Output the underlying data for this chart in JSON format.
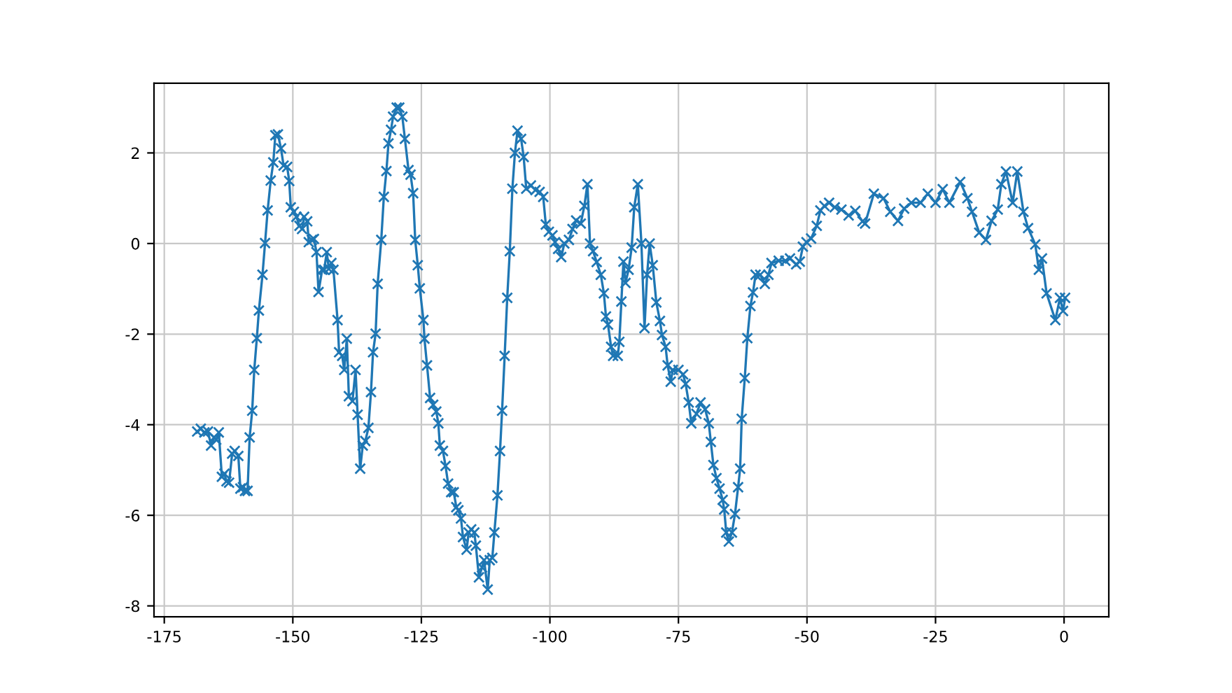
{
  "chart_data": {
    "type": "line",
    "marker": "cross",
    "line_style": "solid",
    "grid": true,
    "xlim": [
      -177,
      8.7
    ],
    "ylim": [
      -8.24,
      3.54
    ],
    "xticks": [
      -175,
      -150,
      -125,
      -100,
      -75,
      -50,
      -25,
      0
    ],
    "yticks": [
      -8,
      -6,
      -4,
      -2,
      0,
      2
    ],
    "series": [
      {
        "color": "#1f77b4",
        "x": [
          -168.6,
          -167.9,
          -167.2,
          -166.5,
          -165.9,
          -165.3,
          -164.9,
          -164.4,
          -163.8,
          -163.3,
          -162.9,
          -162.4,
          -161.8,
          -161.3,
          -160.6,
          -160.2,
          -159.7,
          -159.3,
          -158.8,
          -158.4,
          -157.9,
          -157.5,
          -157.0,
          -156.6,
          -155.9,
          -155.4,
          -154.9,
          -154.3,
          -153.8,
          -153.4,
          -152.9,
          -152.3,
          -151.8,
          -151.1,
          -150.7,
          -150.4,
          -149.8,
          -149.3,
          -148.7,
          -148.2,
          -147.8,
          -147.2,
          -146.9,
          -146.3,
          -145.9,
          -145.4,
          -145.0,
          -144.3,
          -143.9,
          -143.4,
          -143.0,
          -142.5,
          -142.1,
          -141.3,
          -141.0,
          -140.4,
          -140.0,
          -139.5,
          -139.1,
          -138.4,
          -137.8,
          -137.4,
          -136.9,
          -136.4,
          -135.9,
          -135.3,
          -134.8,
          -134.4,
          -133.9,
          -133.5,
          -132.8,
          -132.3,
          -131.8,
          -131.4,
          -130.9,
          -130.5,
          -129.8,
          -129.3,
          -128.7,
          -128.2,
          -127.5,
          -127.1,
          -126.6,
          -126.2,
          -125.7,
          -125.3,
          -124.6,
          -124.4,
          -123.9,
          -123.3,
          -122.7,
          -122.1,
          -121.7,
          -121.4,
          -120.8,
          -120.3,
          -119.8,
          -119.2,
          -118.7,
          -118.2,
          -117.8,
          -117.3,
          -116.9,
          -116.2,
          -115.8,
          -115.3,
          -114.7,
          -114.4,
          -113.8,
          -113.2,
          -112.8,
          -112.1,
          -111.7,
          -111.2,
          -110.8,
          -110.2,
          -109.7,
          -109.3,
          -108.8,
          -108.3,
          -107.8,
          -107.3,
          -106.8,
          -106.3,
          -105.6,
          -105.1,
          -104.6,
          -103.7,
          -102.8,
          -102.0,
          -101.3,
          -100.8,
          -100.2,
          -99.5,
          -99.0,
          -98.4,
          -97.8,
          -97.2,
          -96.3,
          -95.6,
          -94.9,
          -94.0,
          -93.3,
          -92.7,
          -92.2,
          -91.6,
          -90.9,
          -90.1,
          -89.5,
          -89.1,
          -88.7,
          -88.1,
          -87.7,
          -86.8,
          -86.5,
          -86.1,
          -85.7,
          -85.3,
          -84.7,
          -84.1,
          -83.6,
          -82.9,
          -82.2,
          -81.6,
          -81.1,
          -80.6,
          -80.0,
          -79.3,
          -78.6,
          -78.2,
          -77.5,
          -77.1,
          -76.5,
          -76.1,
          -75.0,
          -74.1,
          -73.6,
          -73.0,
          -72.5,
          -71.5,
          -70.7,
          -69.8,
          -69.1,
          -68.7,
          -68.2,
          -67.6,
          -67.0,
          -66.4,
          -66.1,
          -65.7,
          -65.2,
          -64.6,
          -64.0,
          -63.4,
          -63.0,
          -62.7,
          -62.1,
          -61.6,
          -61.0,
          -60.5,
          -60.0,
          -59.1,
          -58.2,
          -57.5,
          -56.9,
          -55.5,
          -54.2,
          -53.3,
          -52.1,
          -51.4,
          -50.8,
          -50.1,
          -49.2,
          -48.1,
          -47.4,
          -46.6,
          -45.7,
          -44.6,
          -43.3,
          -41.9,
          -40.6,
          -39.2,
          -38.7,
          -37.0,
          -35.1,
          -33.8,
          -32.3,
          -31.1,
          -29.7,
          -27.9,
          -26.5,
          -25.0,
          -23.6,
          -22.3,
          -20.2,
          -18.8,
          -17.9,
          -16.5,
          -15.2,
          -14.1,
          -12.9,
          -12.2,
          -11.3,
          -10.0,
          -9.1,
          -7.9,
          -7.0,
          -5.6,
          -4.9,
          -4.3,
          -3.4,
          -1.7,
          -0.8,
          -0.2,
          0.2
        ],
        "values": [
          -4.15,
          -4.09,
          -4.17,
          -4.15,
          -4.46,
          -4.28,
          -4.33,
          -4.17,
          -5.15,
          -5.08,
          -5.25,
          -5.28,
          -4.64,
          -4.58,
          -4.69,
          -5.41,
          -5.38,
          -5.46,
          -5.46,
          -4.28,
          -3.69,
          -2.79,
          -2.09,
          -1.48,
          -0.69,
          0.01,
          0.73,
          1.39,
          1.79,
          2.39,
          2.41,
          2.1,
          1.72,
          1.69,
          1.38,
          0.8,
          0.7,
          0.59,
          0.39,
          0.32,
          0.59,
          0.49,
          0.03,
          0.08,
          0.1,
          -0.19,
          -1.07,
          -0.58,
          -0.58,
          -0.19,
          -0.56,
          -0.43,
          -0.58,
          -1.69,
          -2.4,
          -2.48,
          -2.79,
          -2.1,
          -3.37,
          -3.48,
          -2.79,
          -3.78,
          -4.97,
          -4.46,
          -4.36,
          -4.07,
          -3.28,
          -2.4,
          -1.99,
          -0.89,
          0.08,
          1.03,
          1.6,
          2.21,
          2.51,
          2.8,
          3.0,
          3.0,
          2.8,
          2.31,
          1.62,
          1.52,
          1.11,
          0.08,
          -0.48,
          -0.99,
          -1.69,
          -2.1,
          -2.69,
          -3.41,
          -3.56,
          -3.71,
          -3.97,
          -4.46,
          -4.58,
          -4.91,
          -5.3,
          -5.49,
          -5.49,
          -5.82,
          -5.89,
          -6.07,
          -6.48,
          -6.76,
          -6.38,
          -6.31,
          -6.38,
          -6.67,
          -7.37,
          -7.15,
          -6.99,
          -7.64,
          -6.99,
          -6.94,
          -6.38,
          -5.56,
          -4.58,
          -3.69,
          -2.48,
          -1.2,
          -0.17,
          1.21,
          2.0,
          2.49,
          2.31,
          1.91,
          1.21,
          1.28,
          1.18,
          1.14,
          1.03,
          0.42,
          0.26,
          0.18,
          0.03,
          -0.12,
          -0.3,
          0.0,
          0.08,
          0.32,
          0.51,
          0.44,
          0.83,
          1.31,
          0.0,
          -0.17,
          -0.41,
          -0.69,
          -1.1,
          -1.61,
          -1.79,
          -2.28,
          -2.48,
          -2.48,
          -2.17,
          -1.28,
          -0.4,
          -0.87,
          -0.58,
          -0.09,
          0.8,
          1.31,
          0.0,
          -1.87,
          -0.69,
          0.0,
          -0.48,
          -1.3,
          -1.71,
          -2.02,
          -2.28,
          -2.69,
          -3.05,
          -2.79,
          -2.79,
          -2.89,
          -3.1,
          -3.51,
          -3.97,
          -3.76,
          -3.51,
          -3.66,
          -3.97,
          -4.38,
          -4.89,
          -5.18,
          -5.41,
          -5.66,
          -5.87,
          -6.38,
          -6.58,
          -6.38,
          -5.97,
          -5.38,
          -4.97,
          -3.87,
          -2.97,
          -2.09,
          -1.38,
          -1.08,
          -0.69,
          -0.69,
          -0.89,
          -0.69,
          -0.43,
          -0.38,
          -0.38,
          -0.33,
          -0.46,
          -0.4,
          -0.07,
          0.03,
          0.11,
          0.39,
          0.73,
          0.83,
          0.9,
          0.8,
          0.75,
          0.62,
          0.72,
          0.49,
          0.44,
          1.1,
          1.0,
          0.7,
          0.5,
          0.77,
          0.9,
          0.9,
          1.1,
          0.9,
          1.2,
          0.9,
          1.36,
          1.0,
          0.7,
          0.24,
          0.08,
          0.5,
          0.75,
          1.31,
          1.59,
          0.9,
          1.59,
          0.7,
          0.34,
          -0.02,
          -0.58,
          -0.33,
          -1.1,
          -1.69,
          -1.2,
          -1.49,
          -1.2
        ]
      }
    ]
  }
}
